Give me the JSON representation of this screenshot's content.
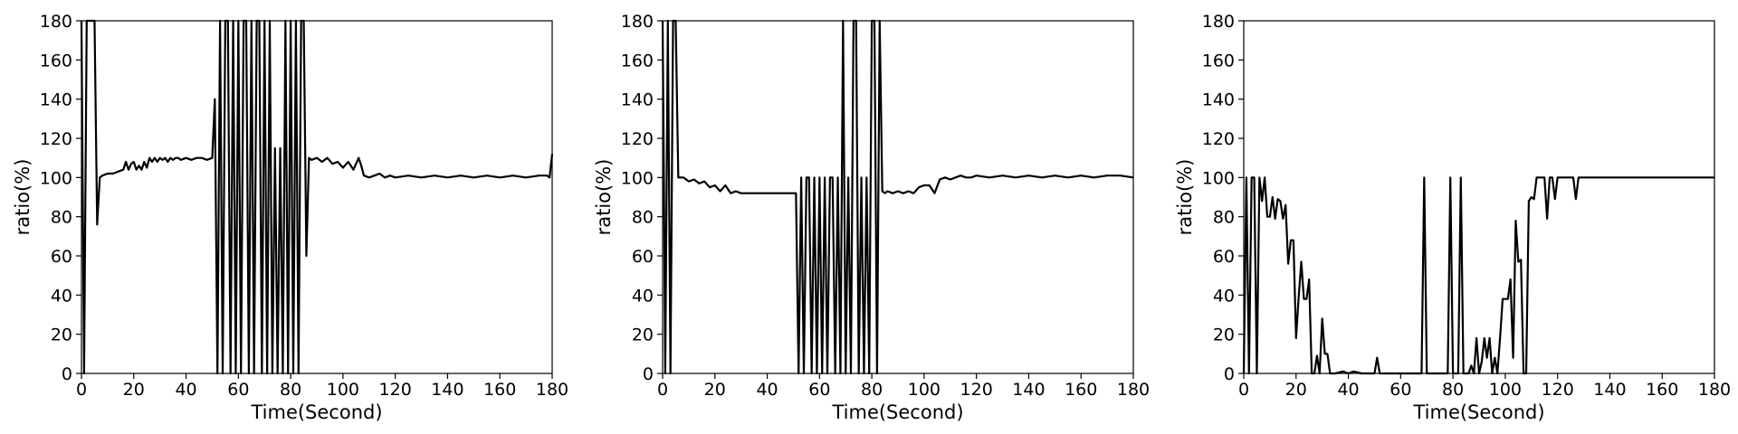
{
  "chart_data": [
    {
      "type": "line",
      "title": "",
      "xlabel": "Time(Second)",
      "ylabel": "ratio(%)",
      "xlim": [
        0,
        180
      ],
      "ylim": [
        0,
        180
      ],
      "xticks": [
        "0",
        "20",
        "40",
        "60",
        "80",
        "100",
        "120",
        "140",
        "160",
        "180"
      ],
      "yticks": [
        "0",
        "20",
        "40",
        "60",
        "80",
        "100",
        "120",
        "140",
        "160",
        "180"
      ],
      "grid": false,
      "series": [
        {
          "color": "#000000",
          "x": [
            0,
            1,
            2,
            3,
            4,
            5,
            6,
            7,
            8,
            10,
            12,
            14,
            16,
            17,
            18,
            19,
            20,
            21,
            22,
            23,
            24,
            25,
            26,
            27,
            28,
            29,
            30,
            31,
            32,
            33,
            34,
            35,
            36,
            37,
            38,
            40,
            42,
            44,
            46,
            48,
            50,
            51,
            52,
            53,
            54,
            55,
            56,
            57,
            58,
            59,
            60,
            61,
            62,
            63,
            64,
            65,
            66,
            67,
            68,
            69,
            70,
            71,
            72,
            73,
            74,
            75,
            76,
            77,
            78,
            79,
            80,
            81,
            82,
            83,
            84,
            85,
            86,
            87,
            88,
            90,
            92,
            94,
            96,
            98,
            100,
            102,
            104,
            106,
            107,
            108,
            110,
            112,
            114,
            116,
            118,
            120,
            125,
            130,
            135,
            140,
            145,
            150,
            155,
            160,
            165,
            170,
            175,
            178,
            179,
            180
          ],
          "y": [
            180,
            0,
            180,
            180,
            180,
            180,
            76,
            100,
            101,
            102,
            102,
            103,
            104,
            108,
            104,
            107,
            108,
            104,
            106,
            104,
            108,
            105,
            110,
            108,
            110,
            108,
            110,
            109,
            110,
            108,
            110,
            109,
            110,
            110,
            109,
            110,
            109,
            110,
            110,
            109,
            110,
            140,
            0,
            180,
            0,
            180,
            180,
            0,
            180,
            0,
            180,
            0,
            180,
            180,
            0,
            180,
            0,
            180,
            180,
            0,
            180,
            0,
            180,
            0,
            115,
            0,
            115,
            0,
            180,
            0,
            180,
            0,
            180,
            0,
            180,
            180,
            60,
            110,
            109,
            110,
            108,
            110,
            107,
            108,
            105,
            108,
            104,
            110,
            106,
            101,
            100,
            101,
            102,
            100,
            101,
            100,
            101,
            100,
            101,
            100,
            101,
            100,
            101,
            100,
            101,
            100,
            101,
            101,
            100,
            112
          ]
        }
      ]
    },
    {
      "type": "line",
      "title": "",
      "xlabel": "Time(Second)",
      "ylabel": "ratio(%)",
      "xlim": [
        0,
        180
      ],
      "ylim": [
        0,
        180
      ],
      "xticks": [
        "0",
        "20",
        "40",
        "60",
        "80",
        "100",
        "120",
        "140",
        "160",
        "180"
      ],
      "yticks": [
        "0",
        "20",
        "40",
        "60",
        "80",
        "100",
        "120",
        "140",
        "160",
        "180"
      ],
      "grid": false,
      "series": [
        {
          "color": "#000000",
          "x": [
            0,
            0.5,
            1,
            2,
            3,
            4,
            5,
            6,
            8,
            10,
            12,
            14,
            16,
            18,
            20,
            22,
            24,
            26,
            28,
            30,
            35,
            40,
            45,
            48,
            50,
            51,
            52,
            53,
            54,
            55,
            56,
            57,
            58,
            59,
            60,
            61,
            62,
            63,
            64,
            65,
            66,
            67,
            68,
            69,
            70,
            71,
            72,
            73,
            74,
            75,
            76,
            77,
            78,
            79,
            80,
            81,
            82,
            83,
            84,
            85,
            86,
            88,
            90,
            92,
            94,
            96,
            98,
            100,
            102,
            104,
            106,
            108,
            110,
            112,
            114,
            116,
            118,
            120,
            125,
            130,
            135,
            140,
            145,
            150,
            155,
            160,
            165,
            170,
            175,
            180
          ],
          "y": [
            180,
            100,
            0,
            180,
            0,
            180,
            180,
            100,
            100,
            98,
            99,
            97,
            98,
            95,
            96,
            93,
            96,
            92,
            93,
            92,
            92,
            92,
            92,
            92,
            92,
            92,
            0,
            100,
            0,
            100,
            100,
            0,
            100,
            0,
            100,
            0,
            100,
            0,
            100,
            100,
            0,
            100,
            0,
            180,
            0,
            100,
            0,
            180,
            180,
            0,
            100,
            0,
            100,
            0,
            180,
            180,
            0,
            180,
            93,
            92,
            93,
            92,
            93,
            92,
            93,
            92,
            95,
            96,
            96,
            92,
            99,
            100,
            99,
            100,
            101,
            100,
            100,
            101,
            100,
            101,
            100,
            101,
            100,
            101,
            100,
            101,
            100,
            101,
            101,
            100
          ]
        }
      ]
    },
    {
      "type": "line",
      "title": "",
      "xlabel": "Time(Second)",
      "ylabel": "ratio(%)",
      "xlim": [
        0,
        180
      ],
      "ylim": [
        0,
        180
      ],
      "xticks": [
        "0",
        "20",
        "40",
        "60",
        "80",
        "100",
        "120",
        "140",
        "160",
        "180"
      ],
      "yticks": [
        "0",
        "20",
        "40",
        "60",
        "80",
        "100",
        "120",
        "140",
        "160",
        "180"
      ],
      "grid": false,
      "series": [
        {
          "color": "#000000",
          "x": [
            0,
            1,
            2,
            3,
            4,
            5,
            6,
            7,
            8,
            9,
            10,
            11,
            12,
            13,
            14,
            15,
            16,
            17,
            18,
            19,
            20,
            21,
            22,
            23,
            24,
            25,
            26,
            27,
            28,
            29,
            30,
            31,
            32,
            33,
            35,
            38,
            40,
            42,
            45,
            48,
            50,
            51,
            52,
            55,
            60,
            65,
            68,
            69,
            70,
            75,
            78,
            79,
            80,
            82,
            83,
            84,
            86,
            87,
            88,
            89,
            90,
            91,
            92,
            93,
            94,
            95,
            96,
            97,
            98,
            99,
            100,
            101,
            102,
            103,
            104,
            105,
            106,
            107,
            108,
            109,
            110,
            111,
            112,
            114,
            115,
            116,
            117,
            118,
            119,
            120,
            122,
            124,
            126,
            127,
            128,
            130,
            135,
            140,
            145,
            150,
            155,
            160,
            165,
            170,
            175,
            180
          ],
          "y": [
            0,
            100,
            0,
            100,
            100,
            0,
            100,
            88,
            100,
            80,
            80,
            90,
            79,
            89,
            88,
            79,
            86,
            56,
            68,
            68,
            18,
            39,
            57,
            38,
            38,
            48,
            0,
            0,
            9,
            0,
            28,
            10,
            10,
            0,
            0,
            1,
            0,
            1,
            0,
            0,
            0,
            8,
            0,
            0,
            0,
            0,
            0,
            100,
            0,
            0,
            0,
            100,
            0,
            0,
            100,
            0,
            0,
            4,
            0,
            18,
            0,
            6,
            18,
            8,
            18,
            0,
            8,
            0,
            18,
            38,
            38,
            38,
            48,
            8,
            78,
            57,
            58,
            0,
            0,
            88,
            90,
            89,
            100,
            100,
            100,
            79,
            100,
            100,
            89,
            100,
            100,
            100,
            100,
            89,
            100,
            100,
            100,
            100,
            100,
            100,
            100,
            100,
            100,
            100,
            100,
            100
          ]
        }
      ]
    }
  ]
}
